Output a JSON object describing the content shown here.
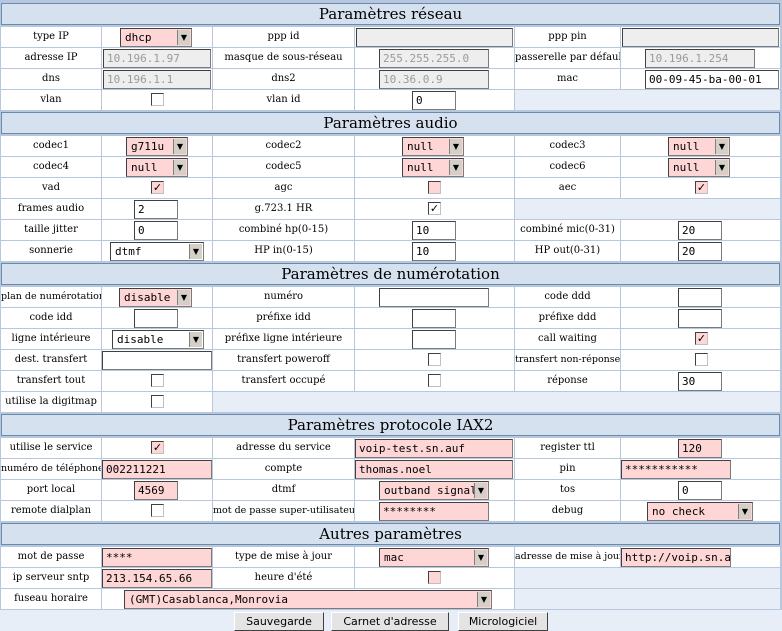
{
  "sections": {
    "reseau": "Paramètres réseau",
    "audio": "Paramètres audio",
    "numerotation": "Paramètres de numérotation",
    "iax2": "Paramètres protocole IAX2",
    "autres": "Autres paramètres"
  },
  "reseau": {
    "type_ip_label": "type IP",
    "type_ip_value": "dhcp",
    "ppp_id_label": "ppp id",
    "ppp_id_value": "",
    "ppp_pin_label": "ppp pin",
    "ppp_pin_value": "",
    "adresse_ip_label": "adresse IP",
    "adresse_ip_value": "10.196.1.97",
    "masque_label": "masque de sous-réseau",
    "masque_value": "255.255.255.0",
    "passerelle_label": "passerelle par défault",
    "passerelle_value": "10.196.1.254",
    "dns_label": "dns",
    "dns_value": "10.196.1.1",
    "dns2_label": "dns2",
    "dns2_value": "10.36.0.9",
    "mac_label": "mac",
    "mac_value": "00-09-45-ba-00-01",
    "vlan_label": "vlan",
    "vlan_checked": false,
    "vlan_id_label": "vlan id",
    "vlan_id_value": "0"
  },
  "audio": {
    "codec1_label": "codec1",
    "codec1_value": "g711u",
    "codec2_label": "codec2",
    "codec2_value": "null",
    "codec3_label": "codec3",
    "codec3_value": "null",
    "codec4_label": "codec4",
    "codec4_value": "null",
    "codec5_label": "codec5",
    "codec5_value": "null",
    "codec6_label": "codec6",
    "codec6_value": "null",
    "vad_label": "vad",
    "vad_checked": true,
    "agc_label": "agc",
    "agc_checked": false,
    "aec_label": "aec",
    "aec_checked": true,
    "frames_label": "frames audio",
    "frames_value": "2",
    "g723_label": "g.723.1 HR",
    "g723_checked": true,
    "jitter_label": "taille jitter",
    "jitter_value": "0",
    "combine_hp_label": "combiné hp(0-15)",
    "combine_hp_value": "10",
    "combine_mic_label": "combiné mic(0-31)",
    "combine_mic_value": "20",
    "sonnerie_label": "sonnerie",
    "sonnerie_value": "dtmf",
    "hp_in_label": "HP in(0-15)",
    "hp_in_value": "10",
    "hp_out_label": "HP out(0-31)",
    "hp_out_value": "20"
  },
  "numerotation": {
    "plan_label": "plan de numérotation",
    "plan_value": "disable",
    "numero_label": "numéro",
    "numero_value": "",
    "code_ddd_label": "code ddd",
    "code_ddd_value": "",
    "code_idd_label": "code idd",
    "code_idd_value": "",
    "prefixe_idd_label": "préfixe idd",
    "prefixe_idd_value": "",
    "prefixe_ddd_label": "préfixe ddd",
    "prefixe_ddd_value": "",
    "ligne_int_label": "ligne intérieure",
    "ligne_int_value": "disable",
    "prefixe_ligne_label": "préfixe ligne intérieure",
    "prefixe_ligne_value": "",
    "call_waiting_label": "call waiting",
    "call_waiting_checked": true,
    "dest_transfert_label": "dest. transfert",
    "dest_transfert_value": "",
    "transfert_poweroff_label": "transfert poweroff",
    "transfert_poweroff_checked": false,
    "transfert_nonrep_label": "transfert non-réponse",
    "transfert_nonrep_checked": false,
    "transfert_tout_label": "transfert tout",
    "transfert_tout_checked": false,
    "transfert_occupe_label": "transfert occupé",
    "transfert_occupe_checked": false,
    "reponse_label": "réponse",
    "reponse_value": "30",
    "digitmap_label": "utilise la digitmap",
    "digitmap_checked": false
  },
  "iax2": {
    "utilise_label": "utilise le service",
    "utilise_checked": true,
    "adresse_label": "adresse du service",
    "adresse_value": "voip-test.sn.auf",
    "register_label": "register ttl",
    "register_value": "120",
    "tel_label": "numéro de téléphone",
    "tel_value": "002211221",
    "compte_label": "compte",
    "compte_value": "thomas.noel",
    "pin_label": "pin",
    "pin_value": "***********",
    "port_label": "port local",
    "port_value": "4569",
    "dtmf_label": "dtmf",
    "dtmf_value": "outband signal",
    "tos_label": "tos",
    "tos_value": "0",
    "dialplan_label": "remote dialplan",
    "dialplan_checked": false,
    "su_pass_label": "mot de passe super-utilisateur",
    "su_pass_value": "********",
    "debug_label": "debug",
    "debug_value": "no check"
  },
  "autres": {
    "pass_label": "mot de passe",
    "pass_value": "****",
    "maj_label": "type de mise à jour",
    "maj_value": "mac",
    "maj_addr_label": "adresse de mise à jour",
    "maj_addr_value": "http://voip.sn.auf",
    "sntp_label": "ip serveur sntp",
    "sntp_value": "213.154.65.66",
    "ete_label": "heure d'été",
    "ete_checked": false,
    "fuseau_label": "fuseau horaire",
    "fuseau_value": "(GMT)Casablanca,Monrovia"
  },
  "buttons": {
    "save": "Sauvegarde",
    "carnet": "Carnet d'adresse",
    "firmware": "Micrologiciel"
  },
  "check_mark": "✓"
}
